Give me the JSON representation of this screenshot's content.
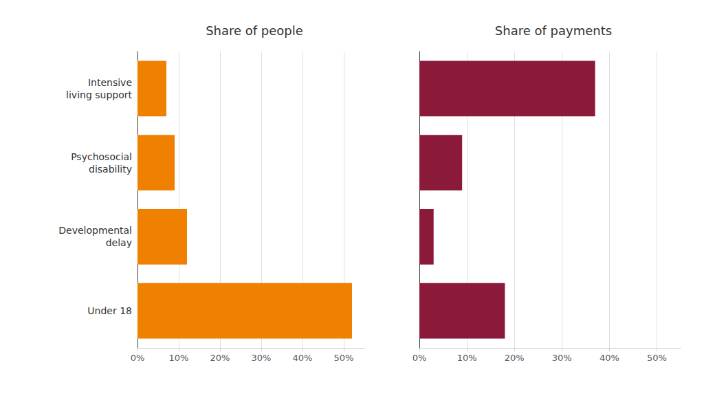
{
  "chart_data": [
    {
      "type": "bar",
      "orientation": "horizontal",
      "title": "Share of people",
      "categories": [
        "Intensive\nliving support",
        "Psychosocial\ndisability",
        "Developmental\ndelay",
        "Under 18"
      ],
      "values": [
        7,
        9,
        12,
        52
      ],
      "color": "#F08000",
      "xlim": [
        0,
        55
      ],
      "xticks": [
        {
          "value": 0,
          "label": "0%"
        },
        {
          "value": 10,
          "label": "10%"
        },
        {
          "value": 20,
          "label": "20%"
        },
        {
          "value": 30,
          "label": "30%"
        },
        {
          "value": 40,
          "label": "40%"
        },
        {
          "value": 50,
          "label": "50%"
        }
      ],
      "grid": true
    },
    {
      "type": "bar",
      "orientation": "horizontal",
      "title": "Share of payments",
      "categories": [
        "Intensive\nliving support",
        "Psychosocial\ndisability",
        "Developmental\ndelay",
        "Under 18"
      ],
      "values": [
        37,
        9,
        3,
        18
      ],
      "color": "#8B1A3A",
      "xlim": [
        0,
        55
      ],
      "xticks": [
        {
          "value": 0,
          "label": "0%"
        },
        {
          "value": 10,
          "label": "10%"
        },
        {
          "value": 20,
          "label": "20%"
        },
        {
          "value": 30,
          "label": "30%"
        },
        {
          "value": 40,
          "label": "40%"
        },
        {
          "value": 50,
          "label": "50%"
        }
      ],
      "grid": true,
      "tick_labels": "x"
    }
  ]
}
